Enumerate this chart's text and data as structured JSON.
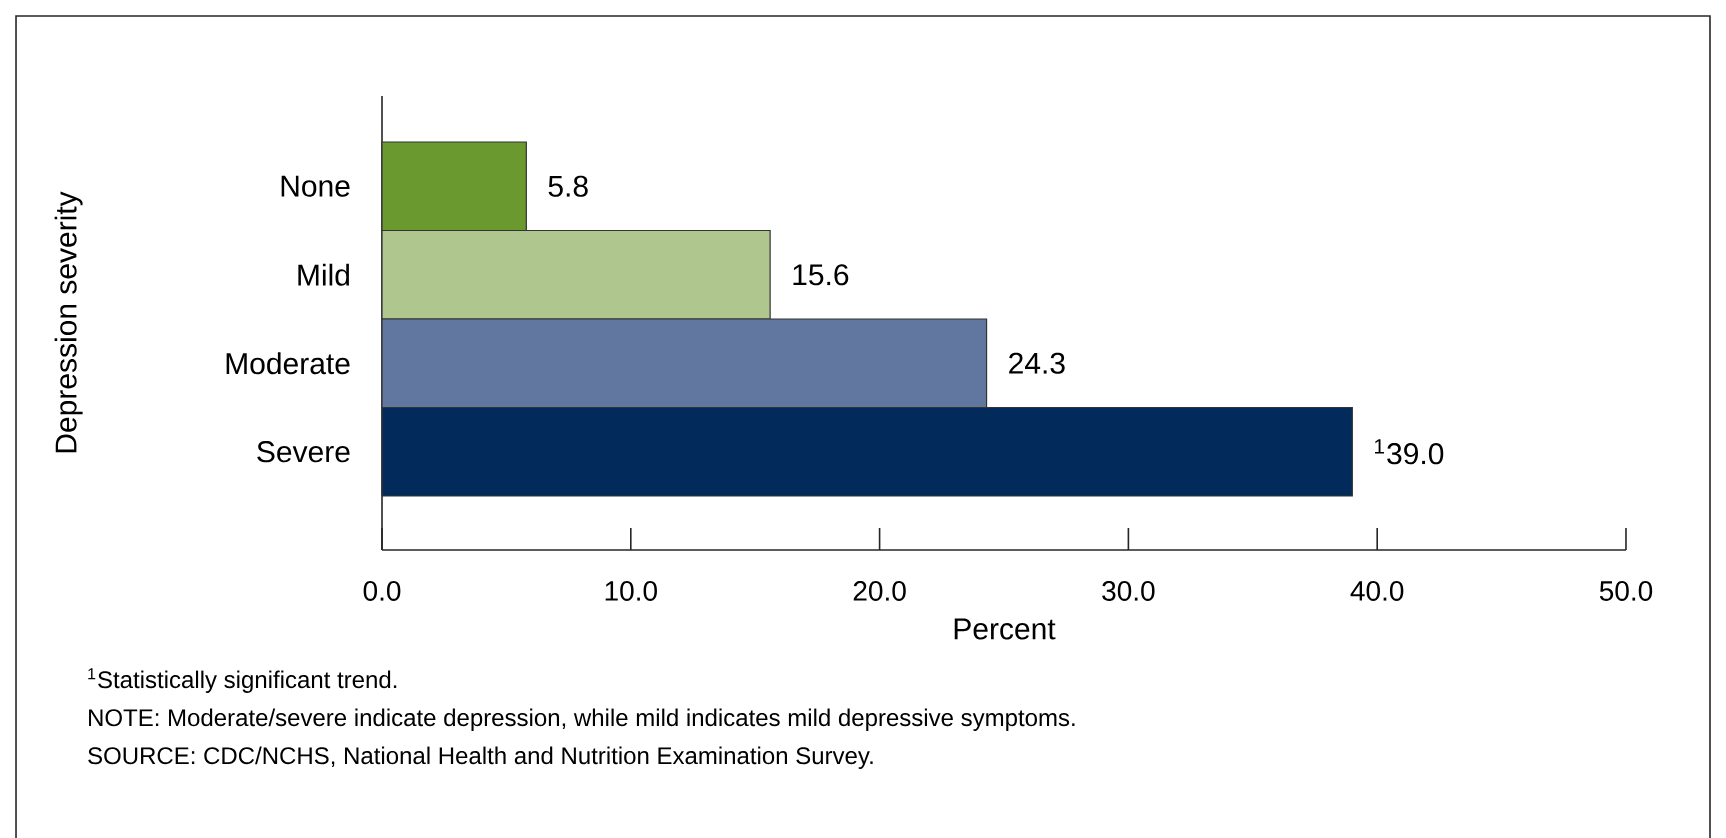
{
  "chart_data": {
    "type": "bar",
    "orientation": "horizontal",
    "xlabel": "Percent",
    "ylabel": "Depression severity",
    "categories": [
      "None",
      "Mild",
      "Moderate",
      "Severe"
    ],
    "values": [
      5.8,
      15.6,
      24.3,
      39.0
    ],
    "colors": [
      "#6a9a2f",
      "#afc78e",
      "#62779f",
      "#022a5a"
    ],
    "value_labels": [
      "5.8",
      "15.6",
      "24.3",
      "$^{1}$39.0"
    ],
    "xlim": [
      0,
      50
    ],
    "xticks": [
      {
        "value": 0,
        "label": "0.0"
      },
      {
        "value": 10,
        "label": "10.0"
      },
      {
        "value": 20,
        "label": "20.0"
      },
      {
        "value": 30,
        "label": "30.0"
      },
      {
        "value": 40,
        "label": "40.0"
      },
      {
        "value": 50,
        "label": "50.0"
      }
    ],
    "grid": false,
    "annotations": [
      "$^{1}$Statistically significant trend.",
      "NOTE:  Moderate/severe indicate depression, while mild indicates mild depressive symptoms.",
      "SOURCE:  CDC/NCHS, National Health and Nutrition Examination Survey."
    ]
  }
}
